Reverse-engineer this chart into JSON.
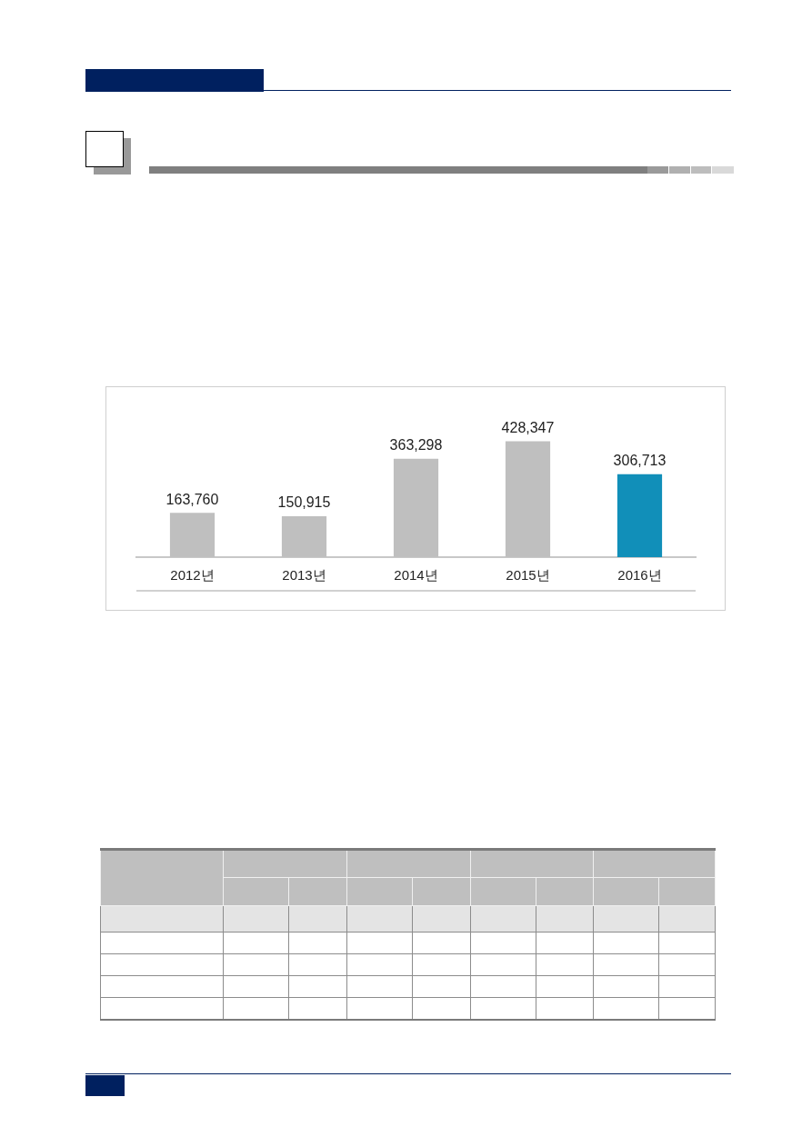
{
  "chart_data": {
    "type": "bar",
    "categories": [
      "2012년",
      "2013년",
      "2014년",
      "2015년",
      "2016년"
    ],
    "values": [
      163760,
      150915,
      363298,
      428347,
      306713
    ],
    "value_labels": [
      "163,760",
      "150,915",
      "363,298",
      "428,347",
      "306,713"
    ],
    "colors": [
      "#bfbfbf",
      "#bfbfbf",
      "#bfbfbf",
      "#bfbfbf",
      "#118fb9"
    ]
  }
}
